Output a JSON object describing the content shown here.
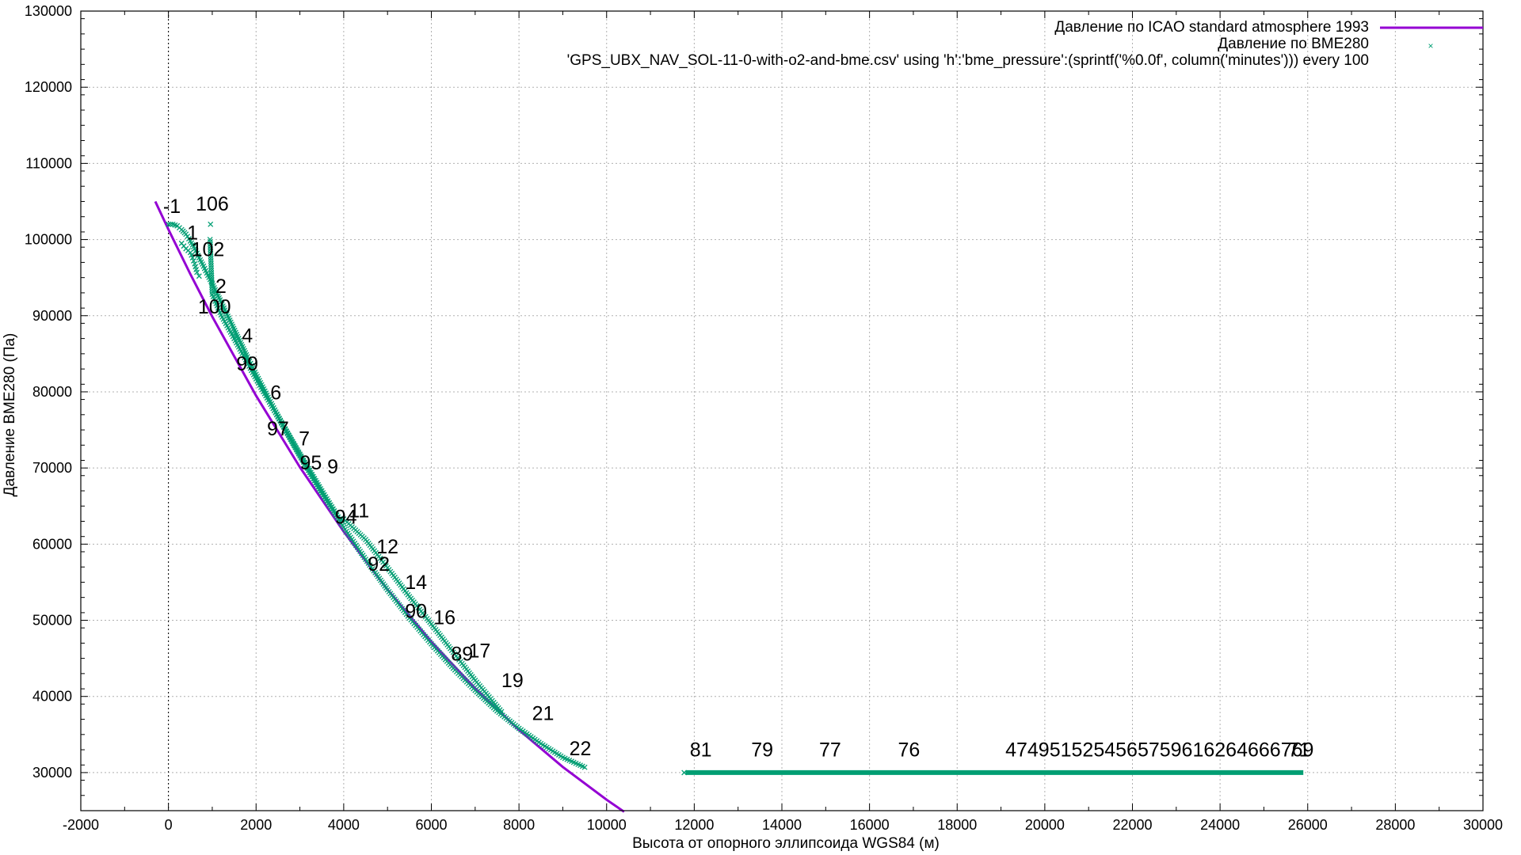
{
  "chart_data": {
    "type": "line",
    "title": "",
    "xlabel": "Высота от опорного эллипсоида WGS84 (м)",
    "ylabel": "Давление BME280 (Па)",
    "xlim": [
      -2000,
      30000
    ],
    "ylim": [
      25000,
      130000
    ],
    "x_ticks": [
      "-2000",
      "0",
      "2000",
      "4000",
      "6000",
      "8000",
      "10000",
      "12000",
      "14000",
      "16000",
      "18000",
      "20000",
      "22000",
      "24000",
      "26000",
      "28000",
      "30000"
    ],
    "y_ticks": [
      "30000",
      "40000",
      "50000",
      "60000",
      "70000",
      "80000",
      "90000",
      "100000",
      "110000",
      "120000",
      "130000"
    ],
    "grid": true,
    "legend_position": "top-right",
    "colors": {
      "isa": "#9400d3",
      "bme": "#009e73"
    },
    "series": [
      {
        "name": "Давление по  ICAO standard atmosphere 1993",
        "kind": "line",
        "x": [
          -300,
          0,
          500,
          1000,
          2000,
          3000,
          4000,
          5000,
          6000,
          7000,
          8000,
          9000,
          10000,
          10400
        ],
        "y": [
          105000,
          101325,
          95461,
          89875,
          79495,
          70108,
          61640,
          54020,
          47181,
          41061,
          35600,
          30742,
          26436,
          24850
        ]
      },
      {
        "name": "Давление по BME280",
        "kind": "points",
        "ascent": {
          "x": [
            0,
            100,
            200,
            300,
            400,
            500,
            600,
            700,
            800,
            900,
            1000,
            1200,
            1400,
            1600,
            1800,
            2000,
            2500,
            3000,
            3500,
            4000,
            4500,
            5000,
            5500,
            6000,
            6500,
            7000,
            7500,
            8000,
            8500,
            9000,
            9500
          ],
          "y": [
            102000,
            102000,
            101800,
            101300,
            100700,
            99800,
            98800,
            97600,
            96500,
            95300,
            94200,
            91800,
            89400,
            87000,
            84600,
            82300,
            76800,
            71600,
            66700,
            62200,
            58000,
            54000,
            50300,
            46900,
            43700,
            40800,
            38100,
            35800,
            33800,
            32000,
            30700
          ]
        },
        "descent": {
          "x": [
            7600,
            7000,
            6500,
            6000,
            5500,
            5000,
            4500,
            4000,
            3900,
            3500,
            3000,
            2500,
            2000,
            1500,
            1200,
            1000,
            950
          ],
          "y": [
            38000,
            42100,
            45800,
            49500,
            53100,
            56900,
            60600,
            63300,
            63300,
            67000,
            71800,
            76700,
            81700,
            87000,
            90100,
            92800,
            100000
          ]
        },
        "ground_scatter": {
          "x": [
            300,
            400,
            500,
            550,
            600,
            650,
            700
          ],
          "y": [
            99500,
            98800,
            98300,
            97600,
            96800,
            95700,
            95200
          ]
        },
        "outliers": {
          "x": [
            960
          ],
          "y": [
            102000
          ]
        },
        "plateau": {
          "x": [
            11800,
            25900
          ],
          "y": [
            30000,
            30000
          ]
        }
      }
    ],
    "point_labels": [
      {
        "text": "-1",
        "x": 80,
        "y": 103500
      },
      {
        "text": "106",
        "x": 1000,
        "y": 103800
      },
      {
        "text": "1",
        "x": 550,
        "y": 100000
      },
      {
        "text": "102",
        "x": 900,
        "y": 97800
      },
      {
        "text": "2",
        "x": 1200,
        "y": 93000
      },
      {
        "text": "100",
        "x": 1050,
        "y": 90300
      },
      {
        "text": "4",
        "x": 1800,
        "y": 86500
      },
      {
        "text": "99",
        "x": 1800,
        "y": 82800
      },
      {
        "text": "6",
        "x": 2450,
        "y": 79000
      },
      {
        "text": "97",
        "x": 2500,
        "y": 74300
      },
      {
        "text": "7",
        "x": 3100,
        "y": 73000
      },
      {
        "text": "95",
        "x": 3250,
        "y": 69800
      },
      {
        "text": "9",
        "x": 3750,
        "y": 69300
      },
      {
        "text": "94",
        "x": 4050,
        "y": 62700
      },
      {
        "text": "11",
        "x": 4350,
        "y": 63500
      },
      {
        "text": "12",
        "x": 5000,
        "y": 58800
      },
      {
        "text": "92",
        "x": 4800,
        "y": 56500
      },
      {
        "text": "14",
        "x": 5650,
        "y": 54100
      },
      {
        "text": "90",
        "x": 5650,
        "y": 50300
      },
      {
        "text": "16",
        "x": 6300,
        "y": 49500
      },
      {
        "text": "89",
        "x": 6700,
        "y": 44700
      },
      {
        "text": "17",
        "x": 7100,
        "y": 45100
      },
      {
        "text": "19",
        "x": 7850,
        "y": 41200
      },
      {
        "text": "21",
        "x": 8550,
        "y": 36900
      },
      {
        "text": "22",
        "x": 9400,
        "y": 32300
      },
      {
        "text": "81",
        "x": 12150,
        "y": 32100
      },
      {
        "text": "79",
        "x": 13550,
        "y": 32100
      },
      {
        "text": "77",
        "x": 15100,
        "y": 32100
      },
      {
        "text": "76",
        "x": 16900,
        "y": 32100
      },
      {
        "text": "4749515254565759616264666769",
        "x": 19100,
        "y": 32100,
        "anchor": "start"
      },
      {
        "text": "71",
        "x": 25800,
        "y": 32100
      }
    ],
    "legend_entries": [
      "Давление по  ICAO standard atmosphere 1993",
      "Давление по BME280",
      "'GPS_UBX_NAV_SOL-11-0-with-o2-and-bme.csv' using 'h':'bme_pressure':(sprintf('%0.0f', column('minutes'))) every 100"
    ]
  }
}
